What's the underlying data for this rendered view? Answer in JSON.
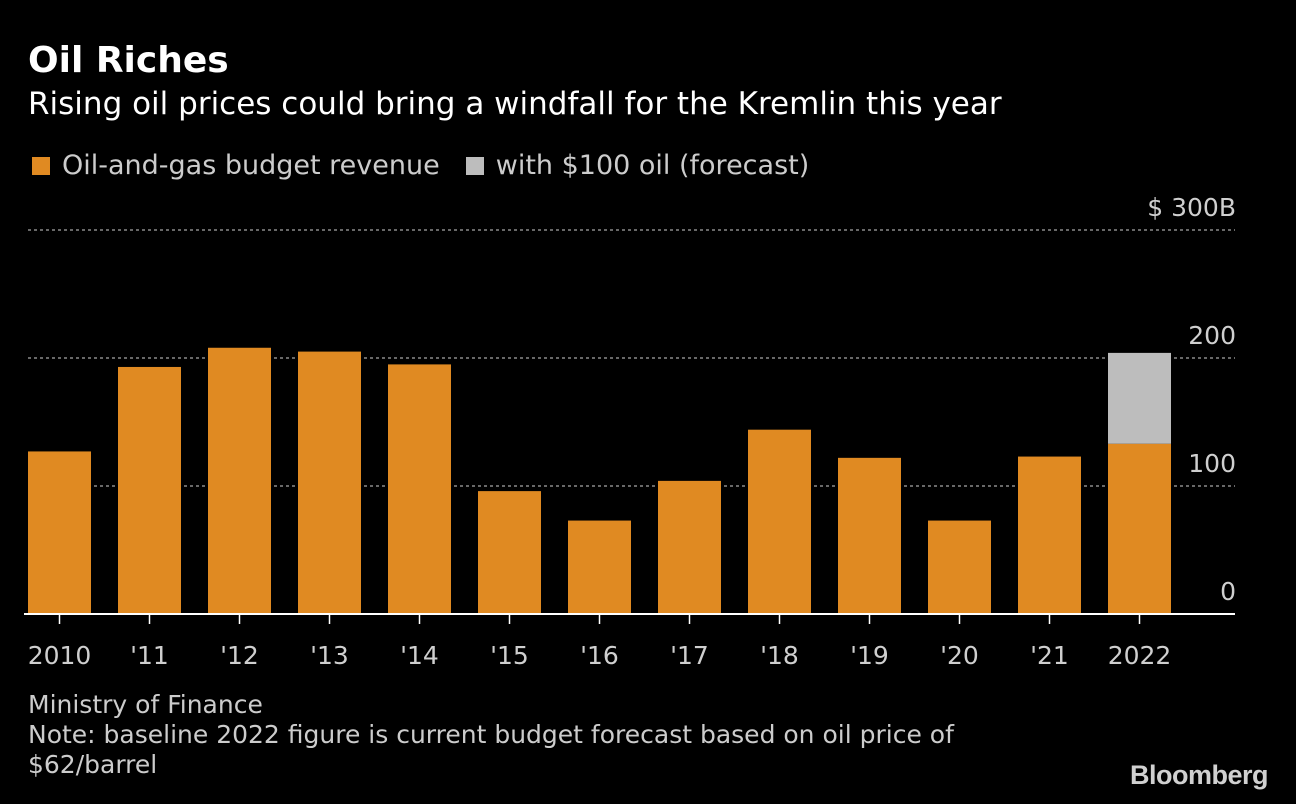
{
  "chart_data": {
    "type": "bar",
    "stacked": true,
    "title": "Oil Riches",
    "subtitle": "Rising oil prices could bring a windfall for the Kremlin this year",
    "categories": [
      "2010",
      "'11",
      "'12",
      "'13",
      "'14",
      "'15",
      "'16",
      "'17",
      "'18",
      "'19",
      "'20",
      "'21",
      "2022"
    ],
    "series": [
      {
        "name": "Oil-and-gas budget revenue",
        "color": "#E08A22",
        "values": [
          127,
          193,
          208,
          205,
          195,
          96,
          73,
          104,
          144,
          122,
          73,
          123,
          133
        ]
      },
      {
        "name": "with $100 oil (forecast)",
        "color": "#BDBDBD",
        "values": [
          0,
          0,
          0,
          0,
          0,
          0,
          0,
          0,
          0,
          0,
          0,
          0,
          71
        ]
      }
    ],
    "y_ticks": [
      0,
      100,
      200,
      300
    ],
    "y_tick_labels": [
      "0",
      "100",
      "200",
      "$ 300B"
    ],
    "ylim": [
      0,
      300
    ],
    "grid": true,
    "legend_position": "top-left",
    "y_axis_position": "right"
  },
  "source": "Ministry of Finance",
  "note_line1": "Note: baseline 2022 figure is current budget forecast based on oil price of",
  "note_line2": "$62/barrel",
  "logo": "Bloomberg"
}
